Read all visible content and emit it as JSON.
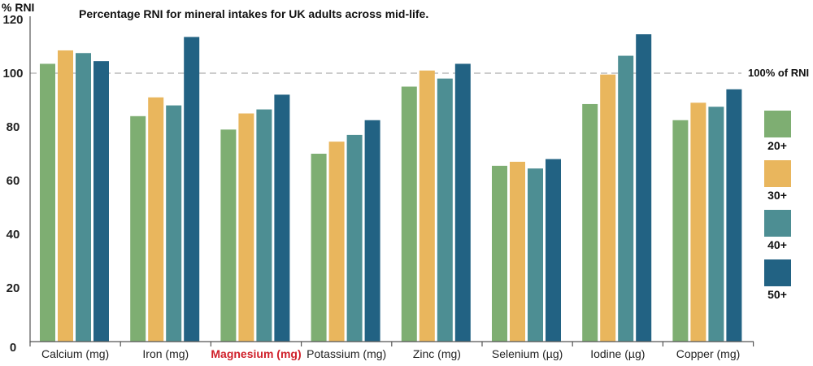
{
  "chart_data": {
    "type": "bar",
    "title": "Percentage RNI for mineral intakes for UK adults across mid-life.",
    "ylabel": "% RNI",
    "xlabel": "",
    "ylim": [
      0,
      120
    ],
    "yticks": [
      0,
      20,
      40,
      60,
      80,
      100,
      120
    ],
    "reference_line": {
      "value": 100,
      "label": "100% of RNI",
      "color": "#cccccc"
    },
    "categories": [
      "Calcium (mg)",
      "Iron (mg)",
      "Magnesium (mg)",
      "Potassium (mg)",
      "Zinc (mg)",
      "Selenium (µg)",
      "Iodine (µg)",
      "Copper (mg)"
    ],
    "highlight_category": "Magnesium (mg)",
    "highlight_color": "#d0202a",
    "series": [
      {
        "name": "20+",
        "color": "#7eae72",
        "values": [
          103.5,
          84,
          79,
          70,
          95,
          65.5,
          88.5,
          82.5
        ]
      },
      {
        "name": "30+",
        "color": "#e9b65d",
        "values": [
          108.5,
          91,
          85,
          74.5,
          101,
          67,
          99.5,
          89
        ]
      },
      {
        "name": "40+",
        "color": "#4d8e93",
        "values": [
          107.5,
          88,
          86.5,
          77,
          98,
          64.5,
          106.5,
          87.5
        ]
      },
      {
        "name": "50+",
        "color": "#226283",
        "values": [
          104.5,
          113.5,
          92,
          82.5,
          103.5,
          68,
          114.5,
          94
        ]
      }
    ],
    "legend_position": "right",
    "grid": false
  }
}
